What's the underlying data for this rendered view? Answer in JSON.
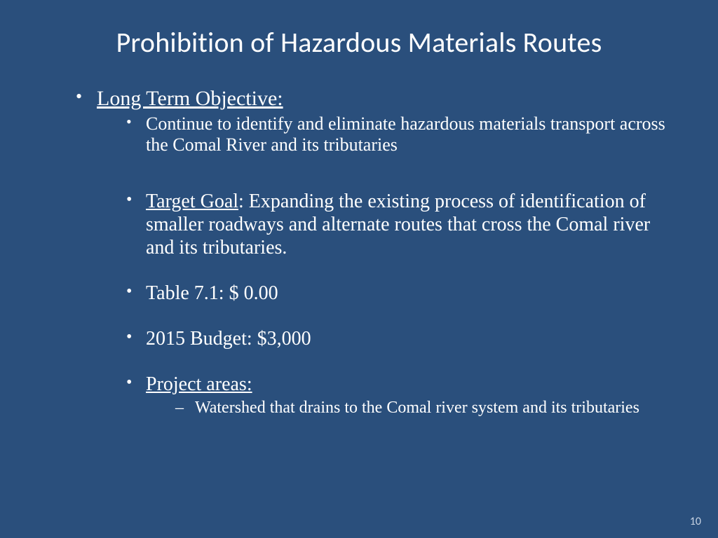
{
  "colors": {
    "background": "#2a4f7c",
    "text": "#ffffff",
    "page_number": "#c7d3e3"
  },
  "fonts": {
    "title_family": "Calibri, Segoe UI, Arial, sans-serif",
    "body_family": "Times New Roman, Times, serif",
    "title_size_pt": 40,
    "level1_size_pt": 30,
    "level2_small_size_pt": 26,
    "level2_big_size_pt": 28,
    "level3_size_pt": 24,
    "page_number_size_pt": 16
  },
  "slide": {
    "title": "Prohibition of Hazardous Materials Routes",
    "page_number": "10",
    "objective": {
      "heading": "Long Term Objective:",
      "sub": "Continue to identify and eliminate hazardous materials transport across the Comal River and its tributaries"
    },
    "items": {
      "target_label": "Target Goal",
      "target_rest": ": Expanding the existing process of identification of smaller roadways and alternate routes that cross the Comal river and its tributaries.",
      "table": "Table 7.1: $ 0.00",
      "budget": "2015 Budget:  $3,000",
      "project_areas_label": "Project areas:",
      "project_areas_sub": "Watershed that drains to the Comal river system and its tributaries"
    }
  }
}
